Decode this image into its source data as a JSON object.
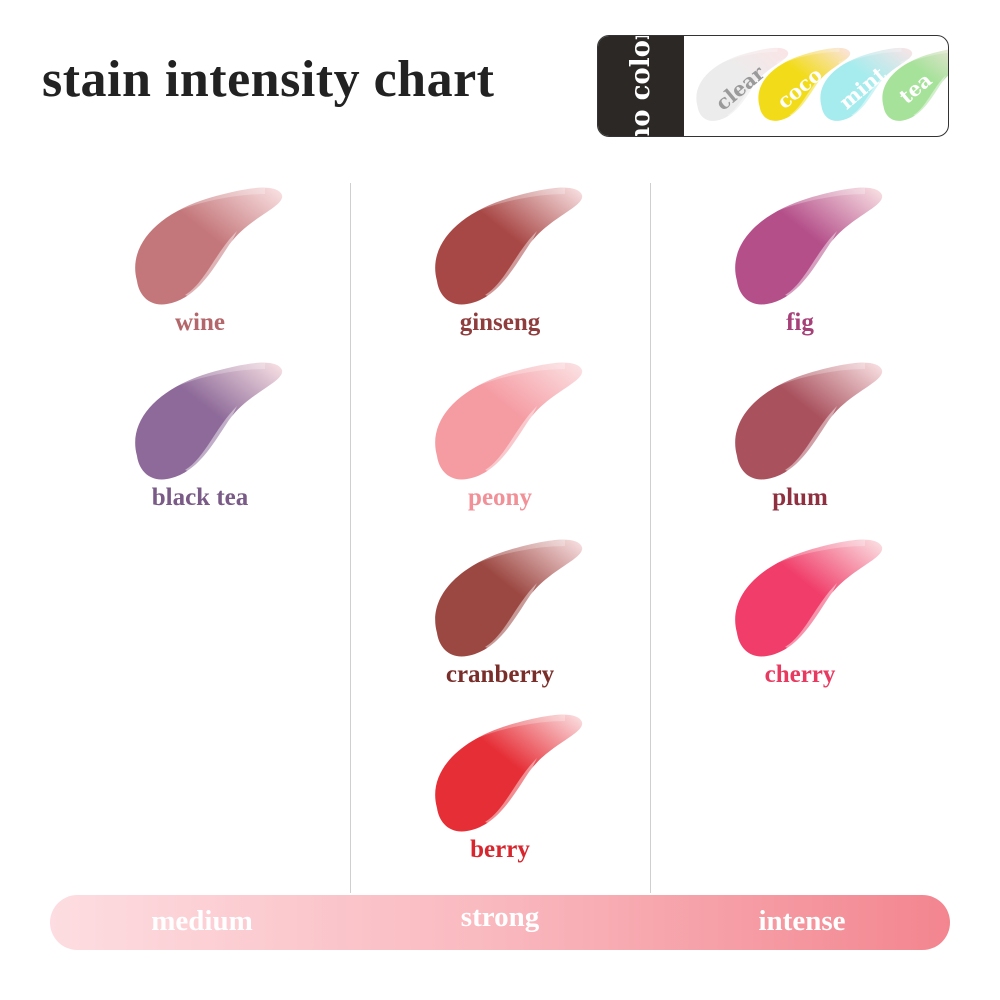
{
  "title": "stain intensity chart",
  "no_color": {
    "label": "no color",
    "swatches": [
      {
        "name": "clear",
        "color": "#ececec",
        "text_color": "#9a9a9a"
      },
      {
        "name": "coco",
        "color": "#f2dc1a",
        "text_color": "#ffffff"
      },
      {
        "name": "mint",
        "color": "#a6ecee",
        "text_color": "#ffffff"
      },
      {
        "name": "tea",
        "color": "#a6e29a",
        "text_color": "#ffffff"
      }
    ]
  },
  "columns": [
    {
      "intensity": "medium",
      "shades": [
        {
          "name": "wine",
          "color": "#c4777a",
          "label_color": "#b3676a"
        },
        {
          "name": "black tea",
          "color": "#8d6a99",
          "label_color": "#7a5a86"
        }
      ]
    },
    {
      "intensity": "strong",
      "shades": [
        {
          "name": "ginseng",
          "color": "#a84846",
          "label_color": "#8e3c3c"
        },
        {
          "name": "peony",
          "color": "#f59ba2",
          "label_color": "#f29098"
        },
        {
          "name": "cranberry",
          "color": "#9c4842",
          "label_color": "#7a2e2a"
        },
        {
          "name": "berry",
          "color": "#e62e36",
          "label_color": "#d8262e"
        }
      ]
    },
    {
      "intensity": "intense",
      "shades": [
        {
          "name": "fig",
          "color": "#b44f8a",
          "label_color": "#a64078"
        },
        {
          "name": "plum",
          "color": "#a9525e",
          "label_color": "#8e3040"
        },
        {
          "name": "cherry",
          "color": "#f03d69",
          "label_color": "#e83a60"
        }
      ]
    }
  ],
  "scale": [
    "medium",
    "strong",
    "intense"
  ]
}
